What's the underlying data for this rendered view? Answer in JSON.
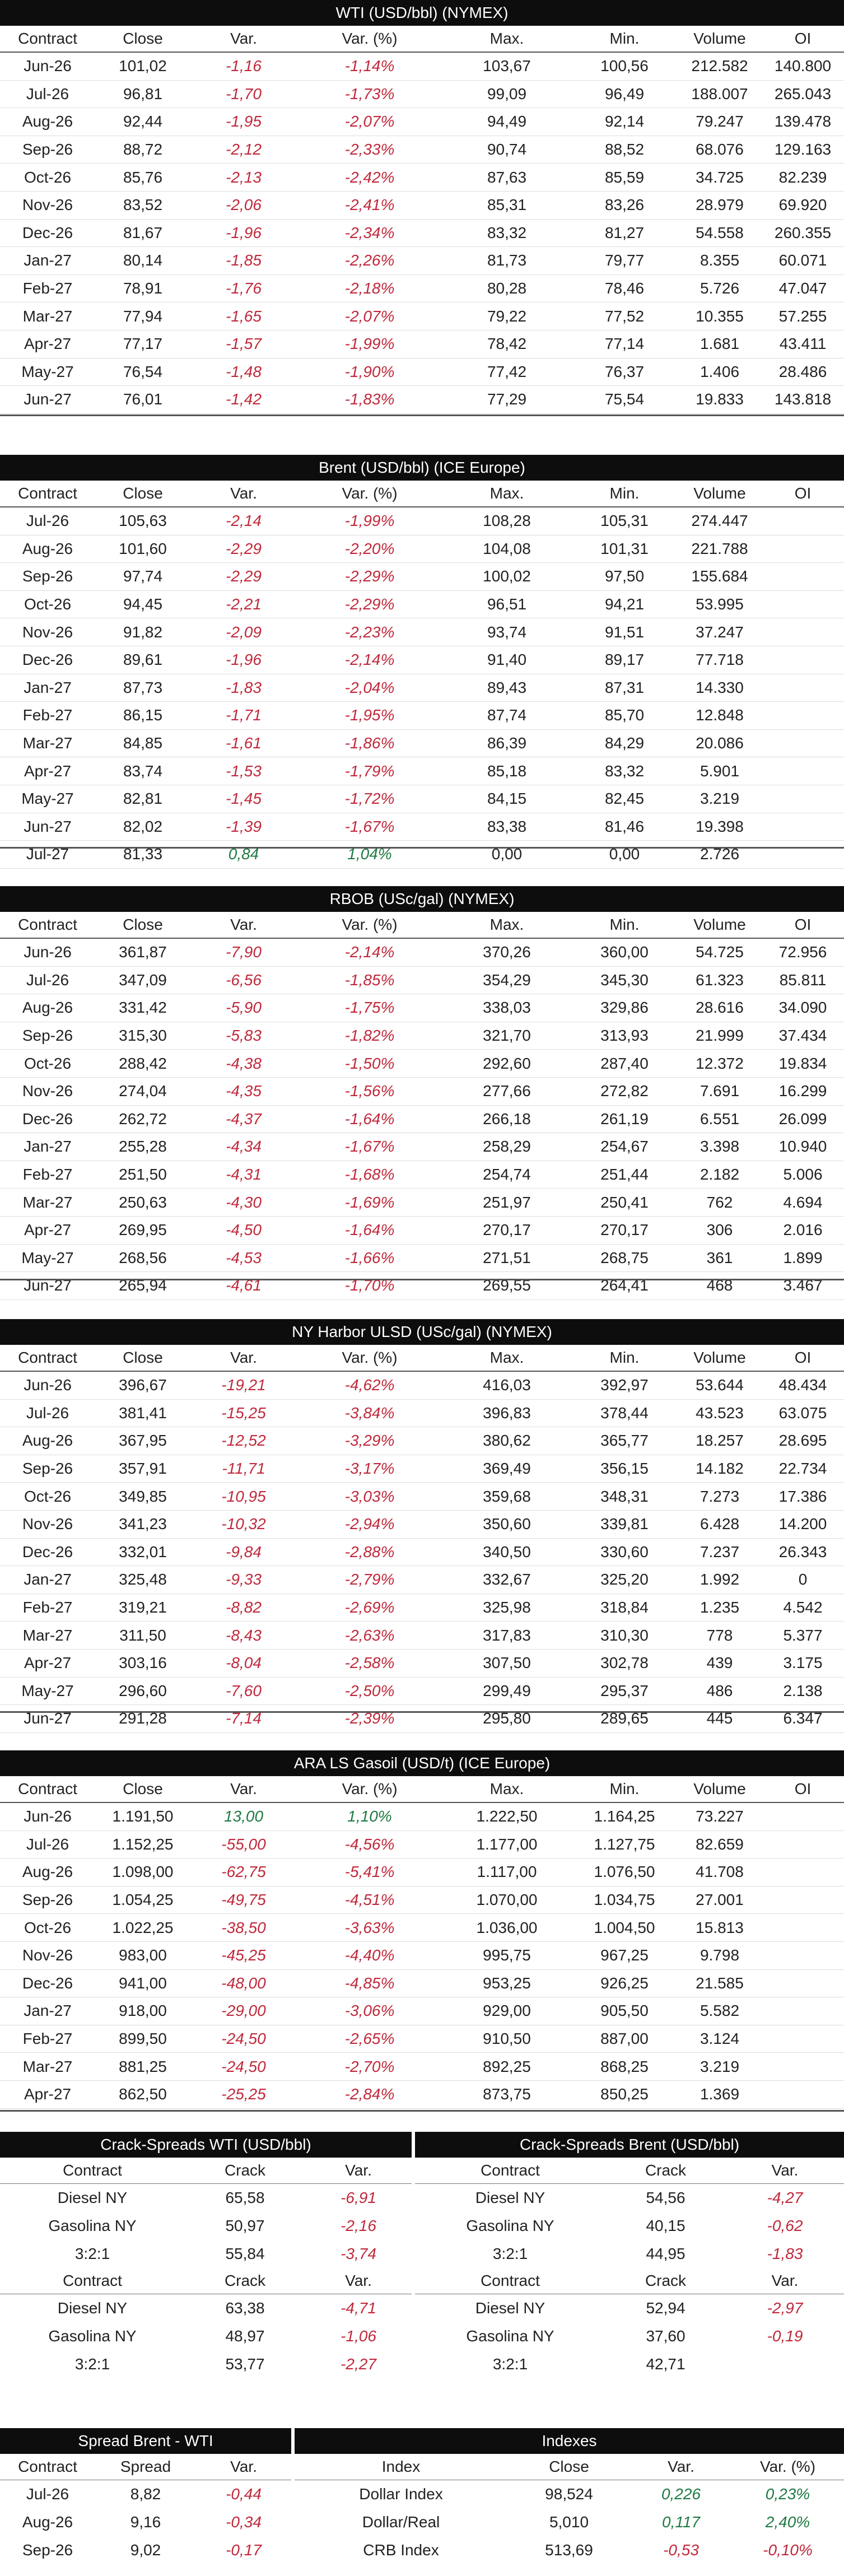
{
  "tables": [
    {
      "title": "WTI (USD/bbl) (NYMEX)",
      "headers": [
        "Contract",
        "Close",
        "Var.",
        "Var. (%)",
        "Max.",
        "Min.",
        "Volume",
        "OI"
      ],
      "rows": [
        [
          "Jun-26",
          "101,02",
          "-1,16",
          "-1,14%",
          "103,67",
          "100,56",
          "212.582",
          "140.800"
        ],
        [
          "Jul-26",
          "96,81",
          "-1,70",
          "-1,73%",
          "99,09",
          "96,49",
          "188.007",
          "265.043"
        ],
        [
          "Aug-26",
          "92,44",
          "-1,95",
          "-2,07%",
          "94,49",
          "92,14",
          "79.247",
          "139.478"
        ],
        [
          "Sep-26",
          "88,72",
          "-2,12",
          "-2,33%",
          "90,74",
          "88,52",
          "68.076",
          "129.163"
        ],
        [
          "Oct-26",
          "85,76",
          "-2,13",
          "-2,42%",
          "87,63",
          "85,59",
          "34.725",
          "82.239"
        ],
        [
          "Nov-26",
          "83,52",
          "-2,06",
          "-2,41%",
          "85,31",
          "83,26",
          "28.979",
          "69.920"
        ],
        [
          "Dec-26",
          "81,67",
          "-1,96",
          "-2,34%",
          "83,32",
          "81,27",
          "54.558",
          "260.355"
        ],
        [
          "Jan-27",
          "80,14",
          "-1,85",
          "-2,26%",
          "81,73",
          "79,77",
          "8.355",
          "60.071"
        ],
        [
          "Feb-27",
          "78,91",
          "-1,76",
          "-2,18%",
          "80,28",
          "78,46",
          "5.726",
          "47.047"
        ],
        [
          "Mar-27",
          "77,94",
          "-1,65",
          "-2,07%",
          "79,22",
          "77,52",
          "10.355",
          "57.255"
        ],
        [
          "Apr-27",
          "77,17",
          "-1,57",
          "-1,99%",
          "78,42",
          "77,14",
          "1.681",
          "43.411"
        ],
        [
          "May-27",
          "76,54",
          "-1,48",
          "-1,90%",
          "77,42",
          "76,37",
          "1.406",
          "28.486"
        ],
        [
          "Jun-27",
          "76,01",
          "-1,42",
          "-1,83%",
          "77,29",
          "75,54",
          "19.833",
          "143.818"
        ]
      ]
    },
    {
      "title": "Brent (USD/bbl) (ICE Europe)",
      "headers": [
        "Contract",
        "Close",
        "Var.",
        "Var. (%)",
        "Max.",
        "Min.",
        "Volume",
        "OI"
      ],
      "rows": [
        [
          "Jul-26",
          "105,63",
          "-2,14",
          "-1,99%",
          "108,28",
          "105,31",
          "274.447",
          ""
        ],
        [
          "Aug-26",
          "101,60",
          "-2,29",
          "-2,20%",
          "104,08",
          "101,31",
          "221.788",
          ""
        ],
        [
          "Sep-26",
          "97,74",
          "-2,29",
          "-2,29%",
          "100,02",
          "97,50",
          "155.684",
          ""
        ],
        [
          "Oct-26",
          "94,45",
          "-2,21",
          "-2,29%",
          "96,51",
          "94,21",
          "53.995",
          ""
        ],
        [
          "Nov-26",
          "91,82",
          "-2,09",
          "-2,23%",
          "93,74",
          "91,51",
          "37.247",
          ""
        ],
        [
          "Dec-26",
          "89,61",
          "-1,96",
          "-2,14%",
          "91,40",
          "89,17",
          "77.718",
          ""
        ],
        [
          "Jan-27",
          "87,73",
          "-1,83",
          "-2,04%",
          "89,43",
          "87,31",
          "14.330",
          ""
        ],
        [
          "Feb-27",
          "86,15",
          "-1,71",
          "-1,95%",
          "87,74",
          "85,70",
          "12.848",
          ""
        ],
        [
          "Mar-27",
          "84,85",
          "-1,61",
          "-1,86%",
          "86,39",
          "84,29",
          "20.086",
          ""
        ],
        [
          "Apr-27",
          "83,74",
          "-1,53",
          "-1,79%",
          "85,18",
          "83,32",
          "5.901",
          ""
        ],
        [
          "May-27",
          "82,81",
          "-1,45",
          "-1,72%",
          "84,15",
          "82,45",
          "3.219",
          ""
        ],
        [
          "Jun-27",
          "82,02",
          "-1,39",
          "-1,67%",
          "83,38",
          "81,46",
          "19.398",
          ""
        ],
        [
          "Jul-27",
          "81,33",
          "0,84",
          "1,04%",
          "0,00",
          "0,00",
          "2.726",
          ""
        ]
      ]
    },
    {
      "title": "RBOB (USc/gal) (NYMEX)",
      "headers": [
        "Contract",
        "Close",
        "Var.",
        "Var. (%)",
        "Max.",
        "Min.",
        "Volume",
        "OI"
      ],
      "rows": [
        [
          "Jun-26",
          "361,87",
          "-7,90",
          "-2,14%",
          "370,26",
          "360,00",
          "54.725",
          "72.956"
        ],
        [
          "Jul-26",
          "347,09",
          "-6,56",
          "-1,85%",
          "354,29",
          "345,30",
          "61.323",
          "85.811"
        ],
        [
          "Aug-26",
          "331,42",
          "-5,90",
          "-1,75%",
          "338,03",
          "329,86",
          "28.616",
          "34.090"
        ],
        [
          "Sep-26",
          "315,30",
          "-5,83",
          "-1,82%",
          "321,70",
          "313,93",
          "21.999",
          "37.434"
        ],
        [
          "Oct-26",
          "288,42",
          "-4,38",
          "-1,50%",
          "292,60",
          "287,40",
          "12.372",
          "19.834"
        ],
        [
          "Nov-26",
          "274,04",
          "-4,35",
          "-1,56%",
          "277,66",
          "272,82",
          "7.691",
          "16.299"
        ],
        [
          "Dec-26",
          "262,72",
          "-4,37",
          "-1,64%",
          "266,18",
          "261,19",
          "6.551",
          "26.099"
        ],
        [
          "Jan-27",
          "255,28",
          "-4,34",
          "-1,67%",
          "258,29",
          "254,67",
          "3.398",
          "10.940"
        ],
        [
          "Feb-27",
          "251,50",
          "-4,31",
          "-1,68%",
          "254,74",
          "251,44",
          "2.182",
          "5.006"
        ],
        [
          "Mar-27",
          "250,63",
          "-4,30",
          "-1,69%",
          "251,97",
          "250,41",
          "762",
          "4.694"
        ],
        [
          "Apr-27",
          "269,95",
          "-4,50",
          "-1,64%",
          "270,17",
          "270,17",
          "306",
          "2.016"
        ],
        [
          "May-27",
          "268,56",
          "-4,53",
          "-1,66%",
          "271,51",
          "268,75",
          "361",
          "1.899"
        ],
        [
          "Jun-27",
          "265,94",
          "-4,61",
          "-1,70%",
          "269,55",
          "264,41",
          "468",
          "3.467"
        ]
      ]
    },
    {
      "title": "NY Harbor ULSD (USc/gal) (NYMEX)",
      "headers": [
        "Contract",
        "Close",
        "Var.",
        "Var. (%)",
        "Max.",
        "Min.",
        "Volume",
        "OI"
      ],
      "rows": [
        [
          "Jun-26",
          "396,67",
          "-19,21",
          "-4,62%",
          "416,03",
          "392,97",
          "53.644",
          "48.434"
        ],
        [
          "Jul-26",
          "381,41",
          "-15,25",
          "-3,84%",
          "396,83",
          "378,44",
          "43.523",
          "63.075"
        ],
        [
          "Aug-26",
          "367,95",
          "-12,52",
          "-3,29%",
          "380,62",
          "365,77",
          "18.257",
          "28.695"
        ],
        [
          "Sep-26",
          "357,91",
          "-11,71",
          "-3,17%",
          "369,49",
          "356,15",
          "14.182",
          "22.734"
        ],
        [
          "Oct-26",
          "349,85",
          "-10,95",
          "-3,03%",
          "359,68",
          "348,31",
          "7.273",
          "17.386"
        ],
        [
          "Nov-26",
          "341,23",
          "-10,32",
          "-2,94%",
          "350,60",
          "339,81",
          "6.428",
          "14.200"
        ],
        [
          "Dec-26",
          "332,01",
          "-9,84",
          "-2,88%",
          "340,50",
          "330,60",
          "7.237",
          "26.343"
        ],
        [
          "Jan-27",
          "325,48",
          "-9,33",
          "-2,79%",
          "332,67",
          "325,20",
          "1.992",
          "0"
        ],
        [
          "Feb-27",
          "319,21",
          "-8,82",
          "-2,69%",
          "325,98",
          "318,84",
          "1.235",
          "4.542"
        ],
        [
          "Mar-27",
          "311,50",
          "-8,43",
          "-2,63%",
          "317,83",
          "310,30",
          "778",
          "5.377"
        ],
        [
          "Apr-27",
          "303,16",
          "-8,04",
          "-2,58%",
          "307,50",
          "302,78",
          "439",
          "3.175"
        ],
        [
          "May-27",
          "296,60",
          "-7,60",
          "-2,50%",
          "299,49",
          "295,37",
          "486",
          "2.138"
        ],
        [
          "Jun-27",
          "291,28",
          "-7,14",
          "-2,39%",
          "295,80",
          "289,65",
          "445",
          "6.347"
        ]
      ]
    },
    {
      "title": "ARA LS Gasoil (USD/t) (ICE Europe)",
      "headers": [
        "Contract",
        "Close",
        "Var.",
        "Var. (%)",
        "Max.",
        "Min.",
        "Volume",
        "OI"
      ],
      "rows": [
        [
          "Jun-26",
          "1.191,50",
          "13,00",
          "1,10%",
          "1.222,50",
          "1.164,25",
          "73.227",
          ""
        ],
        [
          "Jul-26",
          "1.152,25",
          "-55,00",
          "-4,56%",
          "1.177,00",
          "1.127,75",
          "82.659",
          ""
        ],
        [
          "Aug-26",
          "1.098,00",
          "-62,75",
          "-5,41%",
          "1.117,00",
          "1.076,50",
          "41.708",
          ""
        ],
        [
          "Sep-26",
          "1.054,25",
          "-49,75",
          "-4,51%",
          "1.070,00",
          "1.034,75",
          "27.001",
          ""
        ],
        [
          "Oct-26",
          "1.022,25",
          "-38,50",
          "-3,63%",
          "1.036,00",
          "1.004,50",
          "15.813",
          ""
        ],
        [
          "Nov-26",
          "983,00",
          "-45,25",
          "-4,40%",
          "995,75",
          "967,25",
          "9.798",
          ""
        ],
        [
          "Dec-26",
          "941,00",
          "-48,00",
          "-4,85%",
          "953,25",
          "926,25",
          "21.585",
          ""
        ],
        [
          "Jan-27",
          "918,00",
          "-29,00",
          "-3,06%",
          "929,00",
          "905,50",
          "5.582",
          ""
        ],
        [
          "Feb-27",
          "899,50",
          "-24,50",
          "-2,65%",
          "910,50",
          "887,00",
          "3.124",
          ""
        ],
        [
          "Mar-27",
          "881,25",
          "-24,50",
          "-2,70%",
          "892,25",
          "868,25",
          "3.219",
          ""
        ],
        [
          "Apr-27",
          "862,50",
          "-25,25",
          "-2,84%",
          "873,75",
          "850,25",
          "1.369",
          ""
        ]
      ]
    }
  ],
  "crack_wti": {
    "title": "Crack-Spreads WTI (USD/bbl)",
    "headers": [
      "Contract",
      "Crack",
      "Var."
    ],
    "block1": [
      [
        "Diesel NY",
        "65,58",
        "-6,91"
      ],
      [
        "Gasolina NY",
        "50,97",
        "-2,16"
      ],
      [
        "3:2:1",
        "55,84",
        "-3,74"
      ]
    ],
    "block2": [
      [
        "Diesel NY",
        "63,38",
        "-4,71"
      ],
      [
        "Gasolina NY",
        "48,97",
        "-1,06"
      ],
      [
        "3:2:1",
        "53,77",
        "-2,27"
      ]
    ]
  },
  "crack_brent": {
    "title": "Crack-Spreads Brent (USD/bbl)",
    "headers": [
      "Contract",
      "Crack",
      "Var."
    ],
    "block1": [
      [
        "Diesel NY",
        "54,56",
        "-4,27"
      ],
      [
        "Gasolina NY",
        "40,15",
        "-0,62"
      ],
      [
        "3:2:1",
        "44,95",
        "-1,83"
      ]
    ],
    "block2": [
      [
        "Diesel NY",
        "52,94",
        "-2,97"
      ],
      [
        "Gasolina NY",
        "37,60",
        "-0,19"
      ],
      [
        "3:2:1",
        "42,71",
        ""
      ]
    ]
  },
  "spread": {
    "title": "Spread Brent - WTI",
    "headers": [
      "Contract",
      "Spread",
      "Var."
    ],
    "rows": [
      [
        "Jul-26",
        "8,82",
        "-0,44"
      ],
      [
        "Aug-26",
        "9,16",
        "-0,34"
      ],
      [
        "Sep-26",
        "9,02",
        "-0,17"
      ]
    ]
  },
  "indexes": {
    "title": "Indexes",
    "headers": [
      "Index",
      "Close",
      "Var.",
      "Var. (%)"
    ],
    "rows": [
      [
        "Dollar Index",
        "98,524",
        "0,226",
        "0,23%"
      ],
      [
        "Dollar/Real",
        "5,010",
        "0,117",
        "2,40%"
      ],
      [
        "CRB Index",
        "513,69",
        "-0,53",
        "-0,10%"
      ]
    ]
  },
  "colors": {
    "negative": "#c0283b",
    "positive": "#1f7a43",
    "header_bg": "#0d0d0d"
  }
}
